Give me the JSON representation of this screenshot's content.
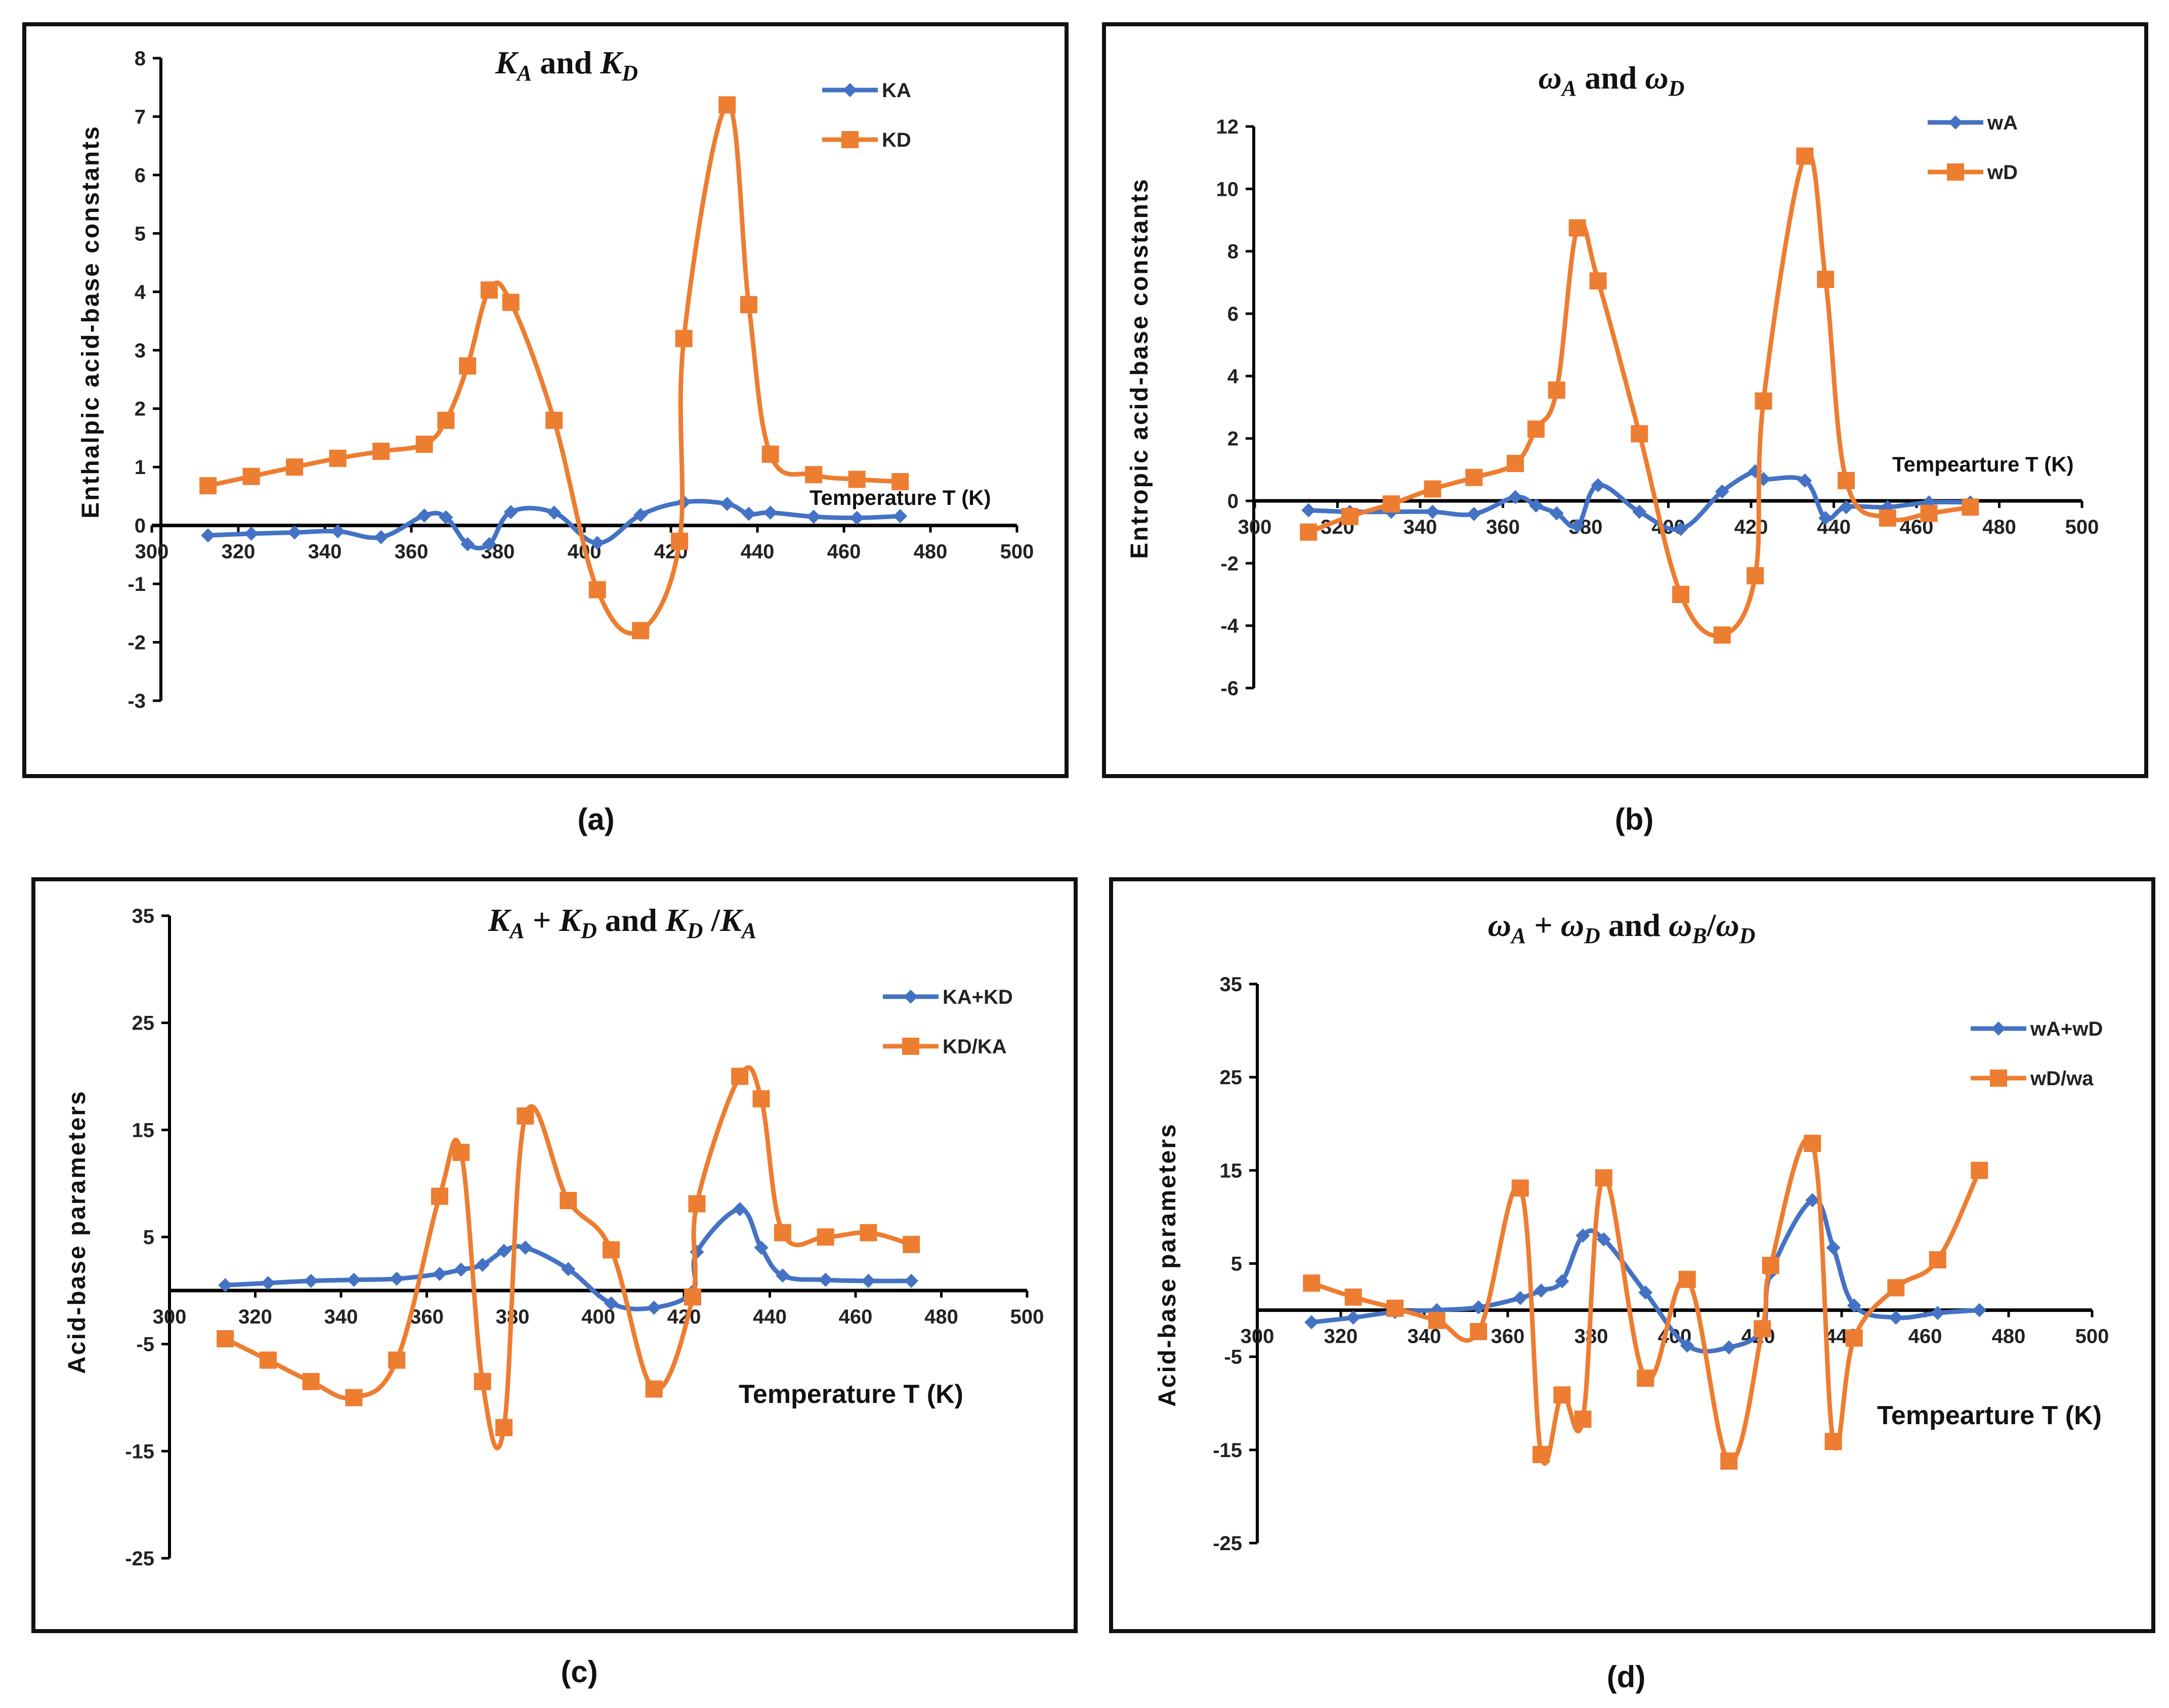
{
  "colors": {
    "series1": "#4472C4",
    "series2": "#ED7D31",
    "frame": "#111111",
    "axis": "#000000"
  },
  "chart_data": [
    {
      "type": "line",
      "panel": "a",
      "caption": "(a)",
      "title": {
        "p1": "K",
        "s1": "A",
        "mid": " and ",
        "p2": "K",
        "s2": "D",
        "rest": ""
      },
      "xlabel": "Temperature T (K)",
      "ylabel": "Enthalpic acid-base constants",
      "xlim": [
        300,
        500
      ],
      "ylim": [
        -3,
        8
      ],
      "xticks": [
        300,
        320,
        340,
        360,
        380,
        400,
        420,
        440,
        460,
        480,
        500
      ],
      "xtick_labels": [
        "300",
        "320",
        "340",
        "360",
        "380",
        "400",
        "420",
        "440",
        "460",
        "480",
        "500"
      ],
      "yticks": [
        -3,
        -2,
        -1,
        0,
        1,
        2,
        3,
        4,
        5,
        6,
        7,
        8
      ],
      "ytick_labels": [
        "-3",
        "-2",
        "-1",
        "0",
        "1",
        "2",
        "3",
        "4",
        "5",
        "6",
        "7",
        "8"
      ],
      "legend_position": "top-right",
      "series": [
        {
          "name": "KA",
          "marker": "diamond",
          "x": [
            313,
            323,
            333,
            343,
            353,
            363,
            368,
            373,
            378,
            383,
            393,
            403,
            413,
            423,
            433,
            438,
            443,
            453,
            463,
            473
          ],
          "y": [
            -0.17,
            -0.14,
            -0.12,
            -0.1,
            -0.2,
            0.17,
            0.14,
            -0.32,
            -0.32,
            0.23,
            0.22,
            -0.3,
            0.18,
            0.4,
            0.37,
            0.2,
            0.22,
            0.15,
            0.13,
            0.16
          ]
        },
        {
          "name": "KD",
          "marker": "square",
          "x": [
            313,
            323,
            333,
            343,
            353,
            363,
            368,
            373,
            378,
            383,
            393,
            403,
            413,
            422,
            423,
            433,
            438,
            443,
            453,
            463,
            473
          ],
          "y": [
            0.68,
            0.84,
            1.0,
            1.15,
            1.27,
            1.39,
            1.8,
            2.73,
            4.03,
            3.82,
            1.8,
            -1.1,
            -1.8,
            -0.27,
            3.2,
            7.2,
            3.78,
            1.22,
            0.87,
            0.79,
            0.75
          ]
        }
      ]
    },
    {
      "type": "line",
      "panel": "b",
      "caption": "(b)",
      "title": {
        "p1": "ω",
        "s1": "A",
        "mid": " and ",
        "p2": "ω",
        "s2": "D",
        "rest": ""
      },
      "xlabel": "Tempearture T (K)",
      "ylabel": "Entropic acid-base constants",
      "xlim": [
        300,
        500
      ],
      "ylim": [
        -6,
        12
      ],
      "xticks": [
        300,
        320,
        340,
        360,
        380,
        400,
        420,
        440,
        460,
        480,
        500
      ],
      "xtick_labels": [
        "300",
        "320",
        "340",
        "360",
        "380",
        "400",
        "420",
        "440",
        "460",
        "480",
        "500"
      ],
      "yticks": [
        -6,
        -4,
        -2,
        0,
        2,
        4,
        6,
        8,
        10,
        12
      ],
      "ytick_labels": [
        "-6",
        "-4",
        "-2",
        "0",
        "2",
        "4",
        "6",
        "8",
        "10",
        "12"
      ],
      "legend_position": "top-right",
      "series": [
        {
          "name": "wA",
          "marker": "diamond",
          "x": [
            313,
            323,
            333,
            343,
            353,
            363,
            368,
            373,
            378,
            383,
            393,
            403,
            413,
            421,
            423,
            433,
            438,
            443,
            453,
            463,
            473
          ],
          "y": [
            -0.3,
            -0.35,
            -0.35,
            -0.35,
            -0.42,
            0.12,
            -0.15,
            -0.4,
            -0.8,
            0.5,
            -0.35,
            -0.9,
            0.3,
            0.95,
            0.7,
            0.65,
            -0.55,
            -0.2,
            -0.2,
            -0.05,
            -0.05
          ]
        },
        {
          "name": "wD",
          "marker": "square",
          "x": [
            313,
            323,
            333,
            343,
            353,
            363,
            368,
            373,
            378,
            383,
            393,
            403,
            413,
            421,
            423,
            433,
            438,
            443,
            453,
            463,
            473
          ],
          "y": [
            -1.0,
            -0.5,
            -0.1,
            0.38,
            0.75,
            1.2,
            2.3,
            3.55,
            8.75,
            7.05,
            2.15,
            -3.0,
            -4.3,
            -2.4,
            3.2,
            11.05,
            7.1,
            0.65,
            -0.55,
            -0.4,
            -0.2
          ]
        }
      ]
    },
    {
      "type": "line",
      "panel": "c",
      "caption": "(c)",
      "title": {
        "p1": "K",
        "s1": "A",
        "mid": " + ",
        "p2": "K",
        "s2": "D",
        "rest": " and ",
        "p3": "K",
        "s3": "D",
        "mid2": " /",
        "p4": "K",
        "s4": "A"
      },
      "xlabel": "Temperature T (K)",
      "ylabel": "Acid-base parameters",
      "xlim": [
        300,
        500
      ],
      "ylim": [
        -25,
        35
      ],
      "xticks": [
        300,
        320,
        340,
        360,
        380,
        400,
        420,
        440,
        460,
        480,
        500
      ],
      "xtick_labels": [
        "300",
        "320",
        "340",
        "360",
        "380",
        "400",
        "420",
        "440",
        "460",
        "480",
        "500"
      ],
      "yticks": [
        -25,
        -15,
        -5,
        5,
        15,
        25,
        35
      ],
      "ytick_labels": [
        "-25",
        "-15",
        "-5",
        "5",
        "15",
        "25",
        "35"
      ],
      "legend_position": "top-right",
      "series": [
        {
          "name": "KA+KD",
          "marker": "diamond",
          "x": [
            313,
            323,
            333,
            343,
            353,
            363,
            368,
            373,
            378,
            383,
            393,
            403,
            413,
            422,
            423,
            433,
            438,
            443,
            453,
            463,
            473
          ],
          "y": [
            0.5,
            0.7,
            0.9,
            1.0,
            1.1,
            1.55,
            1.95,
            2.4,
            3.7,
            4.0,
            2.0,
            -1.2,
            -1.6,
            -0.1,
            3.6,
            7.6,
            4.0,
            1.4,
            1.0,
            0.9,
            0.9
          ]
        },
        {
          "name": "KD/KA",
          "marker": "square",
          "x": [
            313,
            323,
            333,
            343,
            353,
            363,
            368,
            373,
            378,
            383,
            393,
            403,
            413,
            422,
            423,
            433,
            438,
            443,
            453,
            463,
            473
          ],
          "y": [
            -4.5,
            -6.5,
            -8.5,
            -10.0,
            -6.5,
            8.8,
            12.9,
            -8.5,
            -12.8,
            16.3,
            8.4,
            3.8,
            -9.2,
            -0.6,
            8.1,
            20.0,
            17.9,
            5.4,
            5.0,
            5.4,
            4.3
          ]
        }
      ]
    },
    {
      "type": "line",
      "panel": "d",
      "caption": "(d)",
      "title": {
        "p1": "ω",
        "s1": "A",
        "mid": " + ",
        "p2": "ω",
        "s2": "D",
        "rest": " and ",
        "p3": "ω",
        "s3": "B",
        "mid2": "/",
        "p4": "ω",
        "s4": "D"
      },
      "xlabel": "Tempearture T (K)",
      "ylabel": "Acid-base parameters",
      "xlim": [
        300,
        500
      ],
      "ylim": [
        -25,
        35
      ],
      "xticks": [
        300,
        320,
        340,
        360,
        380,
        400,
        420,
        440,
        460,
        480,
        500
      ],
      "xtick_labels": [
        "300",
        "320",
        "340",
        "360",
        "380",
        "400",
        "420",
        "440",
        "460",
        "480",
        "500"
      ],
      "yticks": [
        -25,
        -15,
        -5,
        5,
        15,
        25,
        35
      ],
      "ytick_labels": [
        "-25",
        "-15",
        "-5",
        "5",
        "15",
        "25",
        "35"
      ],
      "legend_position": "top-right",
      "series": [
        {
          "name": "wA+wD",
          "marker": "diamond",
          "x": [
            313,
            323,
            333,
            343,
            353,
            363,
            368,
            373,
            378,
            383,
            393,
            403,
            413,
            421,
            423,
            433,
            438,
            443,
            453,
            463,
            473
          ],
          "y": [
            -1.3,
            -0.8,
            -0.2,
            0.0,
            0.3,
            1.3,
            2.1,
            3.1,
            8.0,
            7.6,
            1.9,
            -3.8,
            -4.0,
            -2.0,
            4.0,
            11.8,
            6.7,
            0.5,
            -0.8,
            -0.3,
            0.0
          ]
        },
        {
          "name": "wD/wa",
          "marker": "square",
          "x": [
            313,
            323,
            333,
            343,
            353,
            363,
            368,
            373,
            378,
            383,
            393,
            403,
            413,
            421,
            423,
            433,
            438,
            443,
            453,
            463,
            473
          ],
          "y": [
            2.9,
            1.4,
            0.2,
            -1.1,
            -2.3,
            13.1,
            -15.5,
            -9.1,
            -11.7,
            14.2,
            -7.3,
            3.3,
            -16.2,
            -2.0,
            4.8,
            17.9,
            -14.1,
            -3.0,
            2.4,
            5.4,
            15.0
          ]
        }
      ]
    }
  ]
}
